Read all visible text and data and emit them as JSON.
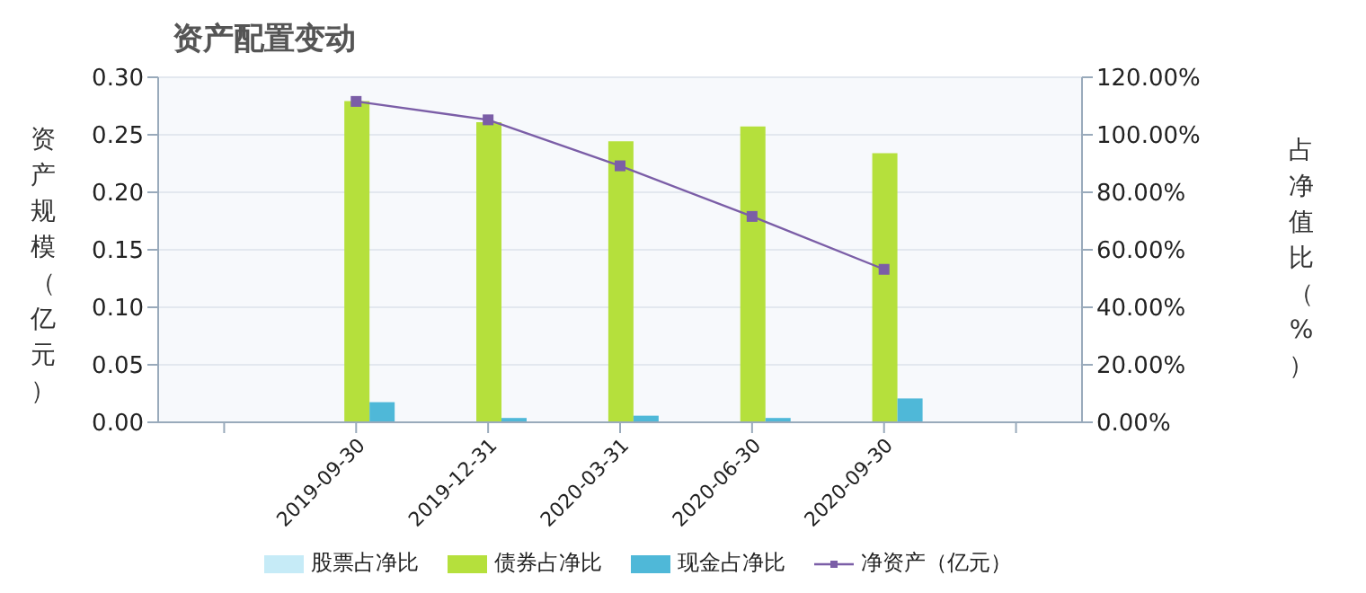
{
  "chart_data": {
    "type": "bar",
    "title": "资产配置变动",
    "ylabel": "资产规模（亿元）",
    "y2label": "占净值比（%）",
    "categories": [
      null,
      "2019-09-30",
      "2019-12-31",
      "2020-03-31",
      "2020-06-30",
      "2020-09-30",
      null
    ],
    "series": [
      {
        "name": "股票占净比",
        "color": "#c6ebf7",
        "axis": "y2",
        "values": [
          null,
          0,
          0,
          0,
          0,
          0,
          null
        ]
      },
      {
        "name": "债券占净比",
        "color": "#b5e03c",
        "axis": "y2",
        "values": [
          null,
          111.7,
          104.4,
          97.7,
          102.9,
          93.6,
          null
        ]
      },
      {
        "name": "现金占净比",
        "color": "#4fb8d8",
        "axis": "y2",
        "values": [
          null,
          7.0,
          1.5,
          2.3,
          1.5,
          8.3,
          null
        ]
      },
      {
        "name": "净资产（亿元）",
        "type": "line",
        "color": "#7b5ea7",
        "marker": "square",
        "values": [
          null,
          0.279,
          0.263,
          0.223,
          0.179,
          0.133,
          null
        ]
      }
    ],
    "ylim": [
      0,
      0.3
    ],
    "yticks": [
      {
        "value": 0,
        "label": "0.00"
      },
      {
        "value": 0.05,
        "label": "0.05"
      },
      {
        "value": 0.1,
        "label": "0.10"
      },
      {
        "value": 0.15,
        "label": "0.15"
      },
      {
        "value": 0.2,
        "label": "0.20"
      },
      {
        "value": 0.25,
        "label": "0.25"
      },
      {
        "value": 0.3,
        "label": "0.30"
      }
    ],
    "y2lim": [
      0,
      120
    ],
    "y2ticks": [
      {
        "value": 0,
        "label": "0.00%"
      },
      {
        "value": 20,
        "label": "20.00%"
      },
      {
        "value": 40,
        "label": "40.00%"
      },
      {
        "value": 60,
        "label": "60.00%"
      },
      {
        "value": 80,
        "label": "80.00%"
      },
      {
        "value": 100,
        "label": "100.00%"
      },
      {
        "value": 120,
        "label": "120.00%"
      }
    ],
    "grid": "y",
    "legend": "bottom"
  }
}
